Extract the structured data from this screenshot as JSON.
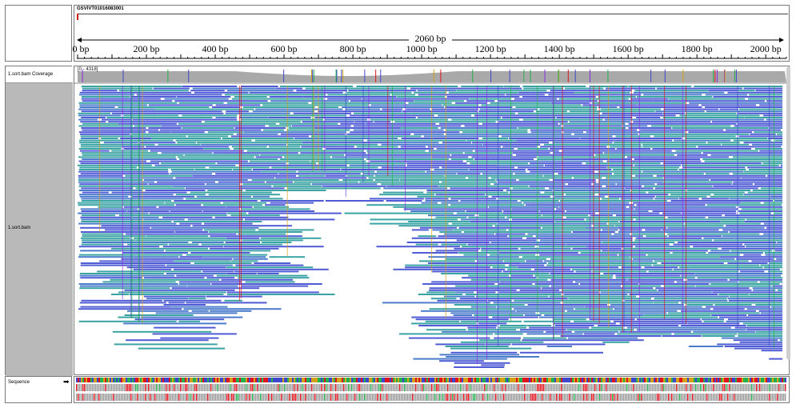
{
  "locus": {
    "name": "GSVIVT01016083001"
  },
  "ruler": {
    "span_label": "2060 bp",
    "ticks": [
      "0 bp",
      "200 bp",
      "400 bp",
      "600 bp",
      "800 bp",
      "1000 bp",
      "1200 bp",
      "1400 bp",
      "1600 bp",
      "1800 bp",
      "2000 bp"
    ],
    "tick_values": [
      0,
      200,
      400,
      600,
      800,
      1000,
      1200,
      1400,
      1600,
      1800,
      2000
    ],
    "max_bp": 2060
  },
  "tracks": {
    "coverage_label": "1.sort.bam Coverage",
    "coverage_range": "[0 - 4318]",
    "reads_label": "1.sort.bam",
    "sequence_label": "Sequence",
    "sequence_arrow": "➡"
  },
  "colors": {
    "read_blue": "#4f5bd5",
    "read_teal": "#3aa3a3",
    "read_mid": "#4b7ccc",
    "coverage_gray": "#a9a9a9",
    "panel_gray": "#b9b9b9",
    "base_A": "#22b14c",
    "base_C": "#3f48cc",
    "base_G": "#d4a017",
    "base_T": "#e0141e"
  }
}
